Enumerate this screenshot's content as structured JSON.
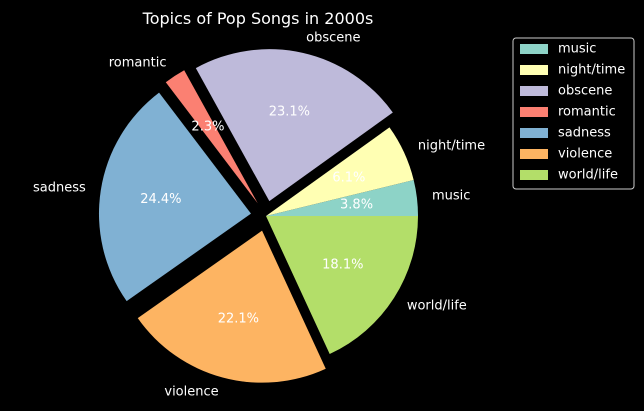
{
  "chart_data": {
    "type": "pie",
    "title": "Topics of Pop Songs in 2000s",
    "categories": [
      "music",
      "night/time",
      "obscene",
      "romantic",
      "sadness",
      "violence",
      "world/life"
    ],
    "values": [
      3.8,
      6.1,
      23.1,
      2.3,
      24.4,
      22.1,
      18.1
    ],
    "percent_labels": [
      "3.8%",
      "6.1%",
      "23.1%",
      "2.3%",
      "24.4%",
      "22.1%",
      "18.1%"
    ],
    "exploded": [
      false,
      false,
      true,
      true,
      true,
      true,
      false
    ],
    "colors": [
      "#8dd3c7",
      "#ffffb3",
      "#bebada",
      "#fb8072",
      "#80b1d3",
      "#fdb462",
      "#b3de69"
    ],
    "start_angle_deg": 0,
    "direction": "counterclockwise",
    "legend": {
      "placement": "upper-right",
      "entries": [
        "music",
        "night/time",
        "obscene",
        "romantic",
        "sadness",
        "violence",
        "world/life"
      ]
    },
    "background": "#000000",
    "text_color": "#ffffff"
  }
}
